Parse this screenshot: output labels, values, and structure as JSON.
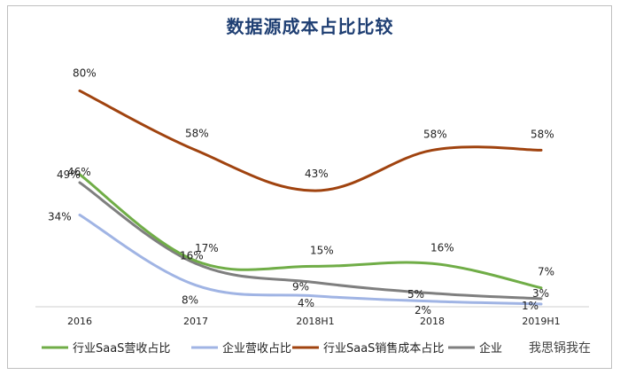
{
  "chart_data": {
    "type": "line",
    "title": "数据源成本占比比较",
    "categories": [
      "2016",
      "2017",
      "2018H1",
      "2018",
      "2019H1"
    ],
    "series": [
      {
        "name": "行业SaaS营收占比",
        "color": "#70ad47",
        "values": [
          49,
          17,
          15,
          16,
          7
        ],
        "labels": [
          "49%",
          "17%",
          "15%",
          "16%",
          "7%"
        ]
      },
      {
        "name": "企业营收占比",
        "color": "#a0b4e4",
        "values": [
          34,
          8,
          4,
          2,
          1
        ],
        "labels": [
          "34%",
          "8%",
          "4%",
          "2%",
          "1%"
        ]
      },
      {
        "name": "行业SaaS销售成本占比",
        "color": "#a0430f",
        "values": [
          80,
          58,
          43,
          58,
          58
        ],
        "labels": [
          "80%",
          "58%",
          "43%",
          "58%",
          "58%"
        ]
      },
      {
        "name": "企业...",
        "color": "#7f7f7f",
        "values": [
          46,
          16,
          9,
          5,
          3
        ],
        "labels": [
          "46%",
          "16%",
          "9%",
          "5%",
          "3%"
        ]
      }
    ],
    "ylim": [
      0,
      90
    ],
    "grid": false,
    "legend": "bottom"
  },
  "legend_items": [
    "行业SaaS营收占比",
    "企业营收占比",
    "行业SaaS销售成本占比",
    "企业"
  ],
  "watermark": "我思锅我在"
}
